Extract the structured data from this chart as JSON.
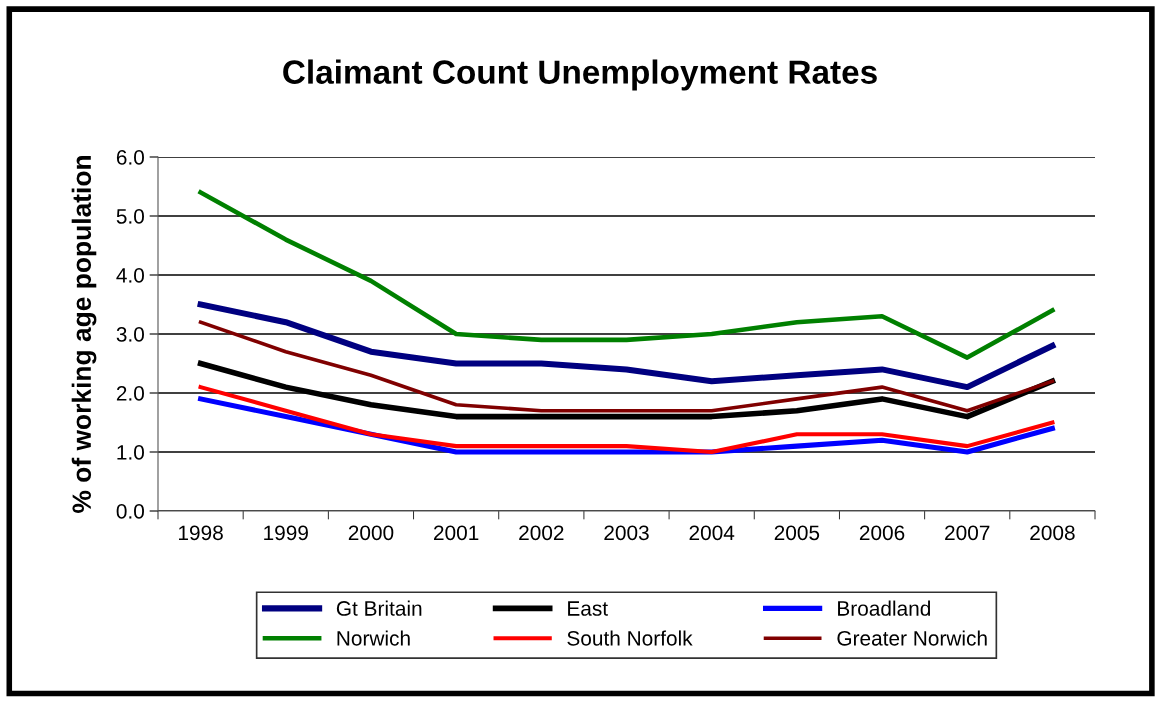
{
  "chart_data": {
    "type": "line",
    "title": "Claimant Count Unemployment Rates",
    "ylabel": "% of working age population",
    "categories": [
      "1998",
      "1999",
      "2000",
      "2001",
      "2002",
      "2003",
      "2004",
      "2005",
      "2006",
      "2007",
      "2008"
    ],
    "series": [
      {
        "name": "Gt Britain",
        "color": "#000080",
        "values": [
          3.5,
          3.2,
          2.7,
          2.5,
          2.5,
          2.4,
          2.2,
          2.3,
          2.4,
          2.1,
          2.8
        ]
      },
      {
        "name": "East",
        "color": "#000000",
        "values": [
          2.5,
          2.1,
          1.8,
          1.6,
          1.6,
          1.6,
          1.6,
          1.7,
          1.9,
          1.6,
          2.2
        ]
      },
      {
        "name": "Broadland",
        "color": "#0000ff",
        "values": [
          1.9,
          1.6,
          1.3,
          1.0,
          1.0,
          1.0,
          1.0,
          1.1,
          1.2,
          1.0,
          1.4
        ]
      },
      {
        "name": "Norwich",
        "color": "#008000",
        "values": [
          5.4,
          4.6,
          3.9,
          3.0,
          2.9,
          2.9,
          3.0,
          3.2,
          3.3,
          2.6,
          3.4
        ]
      },
      {
        "name": "South Norfolk",
        "color": "#ff0000",
        "values": [
          2.1,
          1.7,
          1.3,
          1.1,
          1.1,
          1.1,
          1.0,
          1.3,
          1.3,
          1.1,
          1.5
        ]
      },
      {
        "name": "Greater Norwich",
        "color": "#800000",
        "values": [
          3.2,
          2.7,
          2.3,
          1.8,
          1.7,
          1.7,
          1.7,
          1.9,
          2.1,
          1.7,
          2.2
        ]
      }
    ],
    "ylim": [
      0,
      6
    ],
    "yticks": [
      {
        "value": 0,
        "label": "0.0"
      },
      {
        "value": 1,
        "label": "1.0"
      },
      {
        "value": 2,
        "label": "2.0"
      },
      {
        "value": 3,
        "label": "3.0"
      },
      {
        "value": 4,
        "label": "4.0"
      },
      {
        "value": 5,
        "label": "5.0"
      },
      {
        "value": 6,
        "label": "6.0"
      }
    ],
    "grid": "y",
    "legend": "bottom",
    "marker": "none",
    "line_style": "solid"
  }
}
